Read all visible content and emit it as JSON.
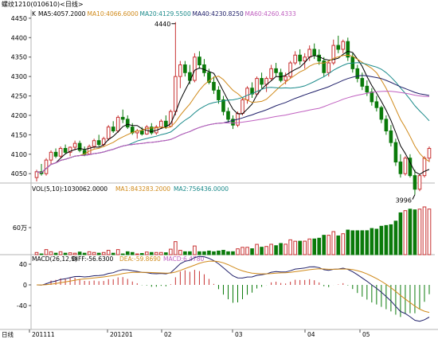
{
  "window": {
    "title": "螺纹1210(010610)<日线>"
  },
  "price_panel": {
    "ma_legend": [
      {
        "label": "MA5:4057.2000",
        "color": "#000000"
      },
      {
        "label": "MA10:4066.6000",
        "color": "#d08a1a"
      },
      {
        "label": "MA20:4129.5500",
        "color": "#1a8a8a"
      },
      {
        "label": "MA40:4230.8250",
        "color": "#20206a"
      },
      {
        "label": "MA60:4260.4333",
        "color": "#c060c0"
      }
    ],
    "legend_prefix": "K",
    "y_ticks": [
      "4450",
      "4400",
      "4350",
      "4300",
      "4250",
      "4200",
      "4150",
      "4100",
      "4050"
    ],
    "high_label": "4440",
    "low_label": "3996"
  },
  "volume_panel": {
    "legend": "VOL(5,10):1030062.0000",
    "ma1": "MA1:843283.2000",
    "ma2": "MA2:756436.0000",
    "y_label": "60万"
  },
  "macd_panel": {
    "legend": "MACD(26,12,9)",
    "diff": "DIFF:-56.6300",
    "dea": "DEA:-59.8690",
    "macd": "MACD:6.4780",
    "y_ticks": [
      "40",
      "0",
      "-40"
    ]
  },
  "x_axis": {
    "labels": [
      "日线",
      "201111",
      "201201",
      "02",
      "03",
      "04",
      "05"
    ]
  },
  "colors": {
    "up": "#c83232",
    "down": "#0a7a0a",
    "axis": "#b4b4b4"
  },
  "chart_data": {
    "type": "candlestick",
    "title": "螺纹1210(010610)<日线>",
    "y_range_price": [
      4030,
      4460
    ],
    "candles": [
      [
        4040,
        4060,
        4030,
        4055
      ],
      [
        4055,
        4075,
        4045,
        4050
      ],
      [
        4050,
        4090,
        4045,
        4085
      ],
      [
        4085,
        4110,
        4075,
        4105
      ],
      [
        4105,
        4115,
        4090,
        4095
      ],
      [
        4095,
        4120,
        4090,
        4115
      ],
      [
        4115,
        4125,
        4100,
        4105
      ],
      [
        4105,
        4120,
        4095,
        4118
      ],
      [
        4118,
        4135,
        4110,
        4128
      ],
      [
        4128,
        4135,
        4105,
        4110
      ],
      [
        4110,
        4120,
        4095,
        4100
      ],
      [
        4100,
        4125,
        4098,
        4120
      ],
      [
        4120,
        4140,
        4115,
        4135
      ],
      [
        4135,
        4150,
        4120,
        4125
      ],
      [
        4125,
        4145,
        4120,
        4140
      ],
      [
        4140,
        4175,
        4135,
        4170
      ],
      [
        4170,
        4185,
        4155,
        4160
      ],
      [
        4160,
        4200,
        4155,
        4195
      ],
      [
        4195,
        4215,
        4180,
        4190
      ],
      [
        4190,
        4200,
        4165,
        4170
      ],
      [
        4170,
        4180,
        4150,
        4155
      ],
      [
        4155,
        4165,
        4140,
        4160
      ],
      [
        4160,
        4170,
        4148,
        4152
      ],
      [
        4152,
        4175,
        4150,
        4170
      ],
      [
        4170,
        4180,
        4150,
        4155
      ],
      [
        4155,
        4175,
        4150,
        4170
      ],
      [
        4170,
        4190,
        4165,
        4185
      ],
      [
        4185,
        4200,
        4165,
        4172
      ],
      [
        4172,
        4215,
        4170,
        4210
      ],
      [
        4210,
        4440,
        4200,
        4300
      ],
      [
        4300,
        4340,
        4270,
        4330
      ],
      [
        4330,
        4340,
        4300,
        4310
      ],
      [
        4310,
        4330,
        4280,
        4290
      ],
      [
        4290,
        4360,
        4285,
        4350
      ],
      [
        4350,
        4365,
        4320,
        4330
      ],
      [
        4330,
        4345,
        4300,
        4310
      ],
      [
        4310,
        4320,
        4280,
        4285
      ],
      [
        4285,
        4300,
        4255,
        4265
      ],
      [
        4265,
        4275,
        4230,
        4240
      ],
      [
        4240,
        4250,
        4200,
        4210
      ],
      [
        4210,
        4220,
        4180,
        4190
      ],
      [
        4190,
        4200,
        4165,
        4175
      ],
      [
        4175,
        4210,
        4170,
        4205
      ],
      [
        4205,
        4245,
        4200,
        4240
      ],
      [
        4240,
        4275,
        4230,
        4270
      ],
      [
        4270,
        4285,
        4245,
        4255
      ],
      [
        4255,
        4300,
        4250,
        4295
      ],
      [
        4295,
        4310,
        4270,
        4280
      ],
      [
        4280,
        4300,
        4260,
        4295
      ],
      [
        4295,
        4330,
        4290,
        4320
      ],
      [
        4320,
        4335,
        4300,
        4310
      ],
      [
        4310,
        4320,
        4285,
        4290
      ],
      [
        4290,
        4310,
        4280,
        4300
      ],
      [
        4300,
        4340,
        4295,
        4335
      ],
      [
        4335,
        4365,
        4330,
        4355
      ],
      [
        4355,
        4370,
        4330,
        4340
      ],
      [
        4340,
        4360,
        4320,
        4350
      ],
      [
        4350,
        4380,
        4340,
        4370
      ],
      [
        4370,
        4385,
        4345,
        4355
      ],
      [
        4355,
        4370,
        4330,
        4340
      ],
      [
        4340,
        4350,
        4300,
        4310
      ],
      [
        4310,
        4340,
        4300,
        4335
      ],
      [
        4335,
        4395,
        4330,
        4380
      ],
      [
        4380,
        4405,
        4360,
        4370
      ],
      [
        4370,
        4395,
        4360,
        4390
      ],
      [
        4390,
        4400,
        4340,
        4350
      ],
      [
        4350,
        4360,
        4310,
        4320
      ],
      [
        4320,
        4330,
        4285,
        4295
      ],
      [
        4295,
        4310,
        4265,
        4275
      ],
      [
        4275,
        4290,
        4250,
        4260
      ],
      [
        4260,
        4270,
        4225,
        4235
      ],
      [
        4235,
        4250,
        4210,
        4220
      ],
      [
        4220,
        4225,
        4180,
        4190
      ],
      [
        4190,
        4200,
        4150,
        4160
      ],
      [
        4160,
        4175,
        4120,
        4130
      ],
      [
        4130,
        4140,
        4070,
        4080
      ],
      [
        4080,
        4100,
        4040,
        4050
      ],
      [
        4050,
        4095,
        4045,
        4090
      ],
      [
        4090,
        4100,
        4040,
        4045
      ],
      [
        4045,
        4060,
        3996,
        4010
      ],
      [
        4010,
        4050,
        4005,
        4045
      ],
      [
        4045,
        4095,
        4040,
        4090
      ],
      [
        4090,
        4120,
        4080,
        4115
      ]
    ],
    "volume_y_label": "60万",
    "macd_y_ticks": [
      40,
      0,
      -40
    ]
  }
}
